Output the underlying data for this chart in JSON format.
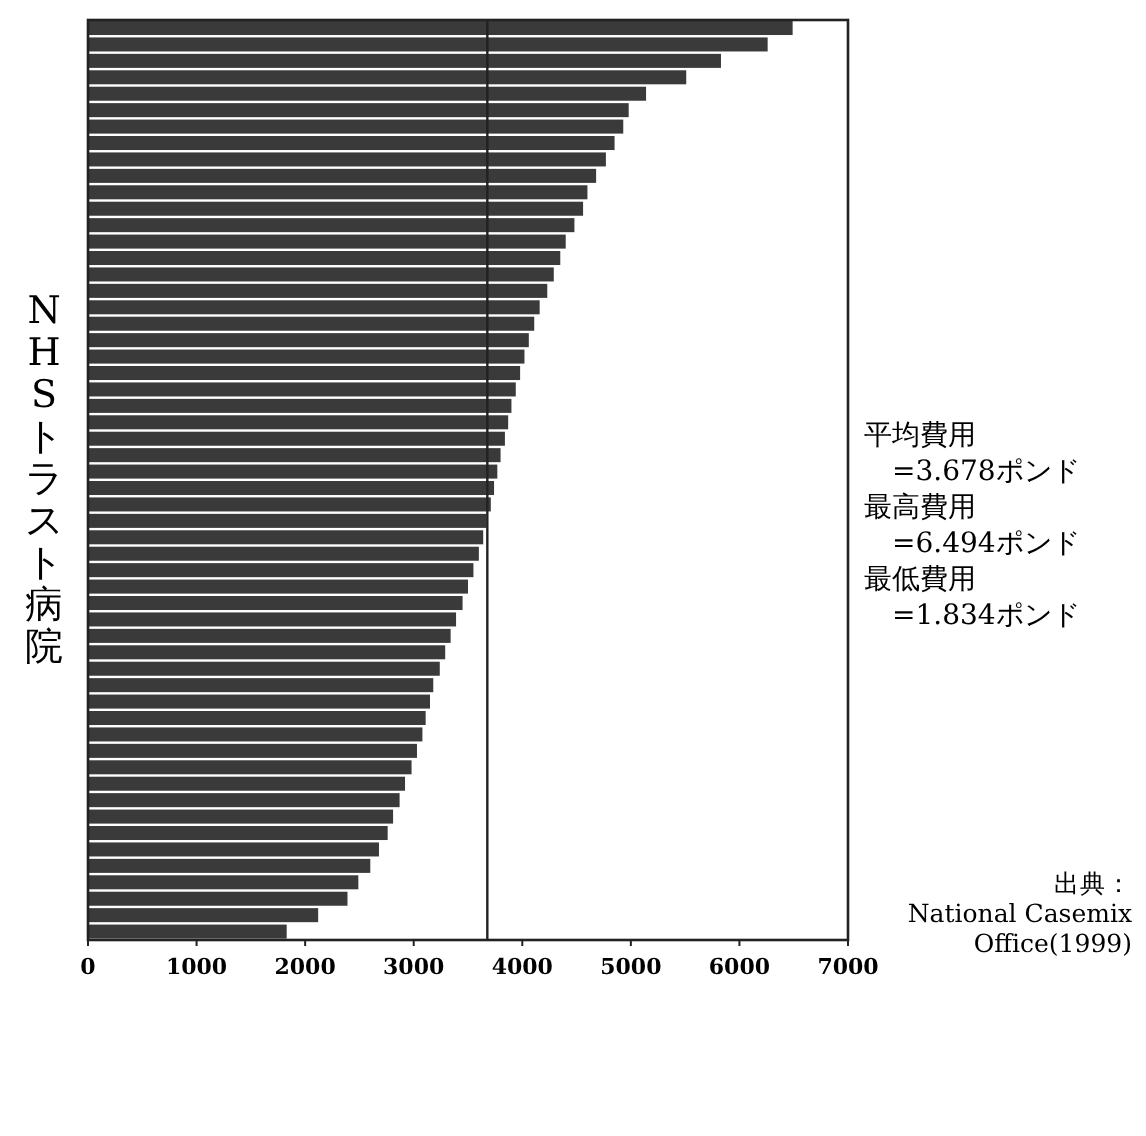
{
  "chart_data": {
    "type": "bar",
    "orientation": "horizontal",
    "ylabel": "NHSトラスト病院",
    "categories": [
      null,
      null,
      null,
      null,
      null,
      null,
      null,
      null,
      null,
      null,
      null,
      null,
      null,
      null,
      null,
      null,
      null,
      null,
      null,
      null,
      null,
      null,
      null,
      null,
      null,
      null,
      null,
      null,
      null,
      null,
      null,
      null,
      null,
      null,
      null,
      null,
      null,
      null,
      null,
      null,
      null,
      null,
      null,
      null,
      null,
      null,
      null,
      null,
      null,
      null,
      null,
      null,
      null,
      null,
      null,
      null
    ],
    "values": [
      6490,
      6260,
      5830,
      5510,
      5140,
      4980,
      4930,
      4850,
      4770,
      4680,
      4600,
      4560,
      4480,
      4400,
      4350,
      4290,
      4230,
      4160,
      4110,
      4060,
      4020,
      3980,
      3940,
      3900,
      3870,
      3840,
      3800,
      3770,
      3740,
      3710,
      3670,
      3640,
      3600,
      3550,
      3500,
      3450,
      3390,
      3340,
      3290,
      3240,
      3180,
      3150,
      3110,
      3080,
      3030,
      2980,
      2920,
      2870,
      2810,
      2760,
      2680,
      2600,
      2490,
      2390,
      2120,
      1830
    ],
    "color": "#3a3a3a",
    "xlim": [
      0,
      7000
    ],
    "xticks": [
      0,
      1000,
      2000,
      3000,
      4000,
      5000,
      6000,
      7000
    ],
    "ref_lines": [
      {
        "axis": "x",
        "value": 3678,
        "color": "#222222"
      }
    ],
    "annotations": [
      "平均費用",
      "　=3.678ポンド",
      "最高費用",
      "　=6.494ポンド",
      "最低費用",
      "　=1.834ポンド",
      "出典：",
      "National Casemix\nOffice(1999)"
    ],
    "grid": false
  }
}
